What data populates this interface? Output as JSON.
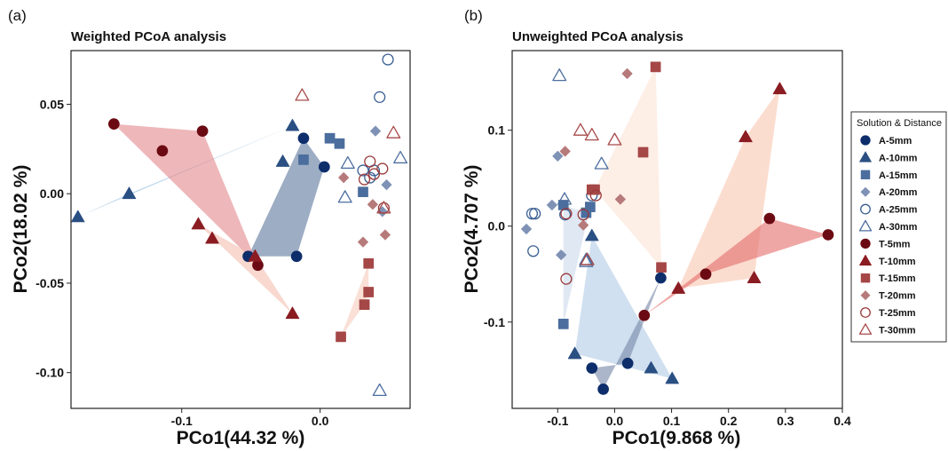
{
  "legend": {
    "title": "Solution & Distance",
    "placement": "right"
  },
  "styles": {
    "A-5mm": {
      "shape": "circle",
      "fill": "#0d2d6b",
      "stroke": "#0d2d6b",
      "filled": true
    },
    "A-10mm": {
      "shape": "triangle",
      "fill": "#2a4f82",
      "stroke": "#2a4f82",
      "filled": true
    },
    "A-15mm": {
      "shape": "square",
      "fill": "#4b6e9e",
      "stroke": "#4b6e9e",
      "filled": true
    },
    "A-20mm": {
      "shape": "diamond",
      "fill": "#7f92b5",
      "stroke": "#7f92b5",
      "filled": true
    },
    "A-25mm": {
      "shape": "circle",
      "fill": "none",
      "stroke": "#3a5f92",
      "filled": false
    },
    "A-30mm": {
      "shape": "triangle",
      "fill": "none",
      "stroke": "#4d6fa0",
      "filled": false
    },
    "T-5mm": {
      "shape": "circle",
      "fill": "#6b0a12",
      "stroke": "#6b0a12",
      "filled": true
    },
    "T-10mm": {
      "shape": "triangle",
      "fill": "#8a1c22",
      "stroke": "#8a1c22",
      "filled": true
    },
    "T-15mm": {
      "shape": "square",
      "fill": "#a54747",
      "stroke": "#a54747",
      "filled": true
    },
    "T-20mm": {
      "shape": "diamond",
      "fill": "#b77a7a",
      "stroke": "#b77a7a",
      "filled": true
    },
    "T-25mm": {
      "shape": "circle",
      "fill": "none",
      "stroke": "#9a3a3a",
      "filled": false
    },
    "T-30mm": {
      "shape": "triangle",
      "fill": "none",
      "stroke": "#a84a4a",
      "filled": false
    }
  },
  "chart_data": [
    {
      "panel_label": "(a)",
      "type": "scatter",
      "title": "Weighted PCoA analysis",
      "xlabel": "PCo1(44.32 %)",
      "ylabel": "PCo2(18.02 %)",
      "xlim": [
        -0.18,
        0.065
      ],
      "ylim": [
        -0.12,
        0.08
      ],
      "xticks": [
        {
          "v": -0.1,
          "label": "-0.1"
        },
        {
          "v": 0.0,
          "label": "0.0"
        }
      ],
      "yticks": [
        {
          "v": -0.1,
          "label": "-0.10"
        },
        {
          "v": -0.05,
          "label": "-0.05"
        },
        {
          "v": 0.0,
          "label": "0.00"
        },
        {
          "v": 0.05,
          "label": "0.05"
        }
      ],
      "hulls": [
        {
          "group": "A-10mm",
          "color": "#8ab8de",
          "opacity": 0.55,
          "points": [
            [
              -0.175,
              -0.013
            ],
            [
              -0.02,
              0.038
            ],
            [
              -0.138,
              0.0
            ]
          ]
        },
        {
          "group": "A-5mm",
          "color": "#4d6a94",
          "opacity": 0.55,
          "points": [
            [
              -0.052,
              -0.035
            ],
            [
              -0.012,
              0.031
            ],
            [
              0.003,
              0.015
            ],
            [
              -0.017,
              -0.035
            ]
          ]
        },
        {
          "group": "T-5mm",
          "color": "#e3878a",
          "opacity": 0.6,
          "points": [
            [
              -0.149,
              0.039
            ],
            [
              -0.085,
              0.035
            ],
            [
              -0.045,
              -0.04
            ]
          ]
        },
        {
          "group": "T-10mm",
          "color": "#f2b8a8",
          "opacity": 0.55,
          "points": [
            [
              -0.088,
              -0.017
            ],
            [
              -0.047,
              -0.035
            ],
            [
              -0.02,
              -0.067
            ]
          ]
        },
        {
          "group": "T-15mm",
          "color": "#f6c7b4",
          "opacity": 0.55,
          "points": [
            [
              0.015,
              -0.08
            ],
            [
              0.035,
              -0.039
            ],
            [
              0.035,
              -0.055
            ],
            [
              0.032,
              -0.062
            ]
          ]
        }
      ],
      "series": [
        {
          "name": "A-5mm",
          "points": [
            [
              -0.052,
              -0.035
            ],
            [
              -0.017,
              -0.035
            ],
            [
              -0.012,
              0.031
            ],
            [
              0.003,
              0.015
            ]
          ]
        },
        {
          "name": "A-10mm",
          "points": [
            [
              -0.175,
              -0.013
            ],
            [
              -0.138,
              0.0
            ],
            [
              -0.027,
              0.018
            ],
            [
              -0.02,
              0.038
            ]
          ]
        },
        {
          "name": "A-15mm",
          "points": [
            [
              -0.012,
              0.019
            ],
            [
              0.007,
              0.031
            ],
            [
              0.014,
              0.028
            ],
            [
              0.031,
              0.001
            ]
          ]
        },
        {
          "name": "A-20mm",
          "points": [
            [
              0.04,
              0.035
            ],
            [
              0.048,
              0.005
            ],
            [
              0.045,
              -0.01
            ]
          ]
        },
        {
          "name": "A-25mm",
          "points": [
            [
              0.049,
              0.075
            ],
            [
              0.043,
              0.054
            ],
            [
              0.031,
              0.013
            ],
            [
              0.036,
              0.009
            ],
            [
              0.039,
              0.013
            ]
          ]
        },
        {
          "name": "A-30mm",
          "points": [
            [
              0.02,
              0.017
            ],
            [
              0.058,
              0.02
            ],
            [
              0.018,
              -0.002
            ],
            [
              0.043,
              -0.11
            ]
          ]
        },
        {
          "name": "T-5mm",
          "points": [
            [
              -0.149,
              0.039
            ],
            [
              -0.114,
              0.024
            ],
            [
              -0.085,
              0.035
            ],
            [
              -0.045,
              -0.04
            ]
          ]
        },
        {
          "name": "T-10mm",
          "points": [
            [
              -0.088,
              -0.017
            ],
            [
              -0.078,
              -0.025
            ],
            [
              -0.047,
              -0.035
            ],
            [
              -0.02,
              -0.067
            ]
          ]
        },
        {
          "name": "T-15mm",
          "points": [
            [
              0.035,
              -0.039
            ],
            [
              0.035,
              -0.055
            ],
            [
              0.032,
              -0.062
            ],
            [
              0.015,
              -0.08
            ]
          ]
        },
        {
          "name": "T-20mm",
          "points": [
            [
              0.017,
              0.009
            ],
            [
              0.038,
              -0.006
            ],
            [
              0.031,
              -0.027
            ],
            [
              0.047,
              -0.023
            ]
          ]
        },
        {
          "name": "T-25mm",
          "points": [
            [
              0.036,
              0.018
            ],
            [
              0.045,
              0.014
            ],
            [
              0.039,
              0.011
            ],
            [
              0.032,
              0.008
            ],
            [
              0.046,
              -0.008
            ]
          ]
        },
        {
          "name": "T-30mm",
          "points": [
            [
              -0.013,
              0.055
            ],
            [
              0.053,
              0.034
            ],
            [
              0.046,
              -0.008
            ]
          ]
        }
      ]
    },
    {
      "panel_label": "(b)",
      "type": "scatter",
      "title": "Unweighted PCoA analysis",
      "xlabel": "PCo1(9.868 %)",
      "ylabel": "PCo2(4.707 %)",
      "xlim": [
        -0.18,
        0.4
      ],
      "ylim": [
        -0.19,
        0.183
      ],
      "xticks": [
        {
          "v": -0.1,
          "label": "-0.1"
        },
        {
          "v": 0.0,
          "label": "0.0"
        },
        {
          "v": 0.1,
          "label": "0.1"
        },
        {
          "v": 0.2,
          "label": "0.2"
        },
        {
          "v": 0.3,
          "label": "0.3"
        },
        {
          "v": 0.4,
          "label": "0.4"
        }
      ],
      "yticks": [
        {
          "v": -0.1,
          "label": "-0.1"
        },
        {
          "v": 0.0,
          "label": "0.0"
        },
        {
          "v": 0.1,
          "label": "0.1"
        }
      ],
      "hulls": [
        {
          "group": "A-10mm",
          "color": "#a9c7e3",
          "opacity": 0.55,
          "points": [
            [
              -0.04,
              -0.01
            ],
            [
              -0.07,
              -0.133
            ],
            [
              0.101,
              -0.159
            ]
          ]
        },
        {
          "group": "A-5mm",
          "color": "#7486a6",
          "opacity": 0.6,
          "points": [
            [
              -0.04,
              -0.148
            ],
            [
              -0.02,
              -0.17
            ],
            [
              0.081,
              -0.054
            ],
            [
              0.023,
              -0.143
            ]
          ]
        },
        {
          "group": "A-15mm",
          "color": "#c5d6ea",
          "opacity": 0.55,
          "points": [
            [
              -0.09,
              0.022
            ],
            [
              -0.09,
              -0.102
            ],
            [
              -0.043,
              0.02
            ],
            [
              -0.05,
              0.014
            ]
          ]
        },
        {
          "group": "T-15mm",
          "color": "#fce3d6",
          "opacity": 0.6,
          "points": [
            [
              -0.035,
              0.038
            ],
            [
              0.072,
              0.166
            ],
            [
              0.082,
              -0.043
            ]
          ]
        },
        {
          "group": "T-10mm",
          "color": "#f7c1a8",
          "opacity": 0.55,
          "points": [
            [
              0.112,
              -0.065
            ],
            [
              0.23,
              0.093
            ],
            [
              0.29,
              0.143
            ],
            [
              0.245,
              -0.054
            ]
          ]
        },
        {
          "group": "T-5mm",
          "color": "#e56d6a",
          "opacity": 0.6,
          "points": [
            [
              0.052,
              -0.093
            ],
            [
              0.272,
              0.008
            ],
            [
              0.375,
              -0.009
            ],
            [
              0.16,
              -0.05
            ]
          ]
        }
      ],
      "series": [
        {
          "name": "A-5mm",
          "points": [
            [
              -0.04,
              -0.148
            ],
            [
              -0.02,
              -0.17
            ],
            [
              0.023,
              -0.143
            ],
            [
              0.081,
              -0.054
            ]
          ]
        },
        {
          "name": "A-10mm",
          "points": [
            [
              -0.04,
              -0.01
            ],
            [
              -0.07,
              -0.133
            ],
            [
              0.064,
              -0.148
            ],
            [
              0.101,
              -0.159
            ]
          ]
        },
        {
          "name": "A-15mm",
          "points": [
            [
              -0.09,
              0.022
            ],
            [
              -0.05,
              0.014
            ],
            [
              -0.043,
              0.02
            ],
            [
              -0.09,
              -0.102
            ]
          ]
        },
        {
          "name": "A-20mm",
          "points": [
            [
              -0.1,
              0.073
            ],
            [
              -0.11,
              0.022
            ],
            [
              -0.155,
              -0.003
            ],
            [
              -0.094,
              -0.03
            ]
          ]
        },
        {
          "name": "A-25mm",
          "points": [
            [
              -0.145,
              0.013
            ],
            [
              -0.14,
              0.013
            ],
            [
              -0.143,
              -0.026
            ],
            [
              -0.087,
              0.012
            ],
            [
              -0.04,
              0.032
            ]
          ]
        },
        {
          "name": "A-30mm",
          "points": [
            [
              -0.097,
              0.157
            ],
            [
              -0.088,
              0.028
            ],
            [
              -0.05,
              -0.037
            ],
            [
              -0.023,
              0.065
            ],
            [
              -0.05,
              -0.035
            ]
          ]
        },
        {
          "name": "T-5mm",
          "points": [
            [
              0.052,
              -0.093
            ],
            [
              0.16,
              -0.05
            ],
            [
              0.272,
              0.008
            ],
            [
              0.375,
              -0.009
            ]
          ]
        },
        {
          "name": "T-10mm",
          "points": [
            [
              0.112,
              -0.065
            ],
            [
              0.23,
              0.093
            ],
            [
              0.29,
              0.143
            ],
            [
              0.245,
              -0.054
            ]
          ]
        },
        {
          "name": "T-15mm",
          "points": [
            [
              -0.04,
              0.038
            ],
            [
              0.05,
              0.077
            ],
            [
              0.072,
              0.166
            ],
            [
              0.082,
              -0.043
            ],
            [
              -0.035,
              0.038
            ]
          ]
        },
        {
          "name": "T-20mm",
          "points": [
            [
              0.022,
              0.159
            ],
            [
              -0.087,
              0.078
            ],
            [
              -0.055,
              0.001
            ],
            [
              0.01,
              0.028
            ]
          ]
        },
        {
          "name": "T-25mm",
          "points": [
            [
              -0.033,
              0.032
            ],
            [
              -0.055,
              0.012
            ],
            [
              -0.085,
              0.013
            ],
            [
              -0.085,
              -0.055
            ]
          ]
        },
        {
          "name": "T-30mm",
          "points": [
            [
              -0.06,
              0.1
            ],
            [
              -0.04,
              0.095
            ],
            [
              0.0,
              0.09
            ],
            [
              -0.048,
              -0.035
            ]
          ]
        }
      ]
    }
  ]
}
